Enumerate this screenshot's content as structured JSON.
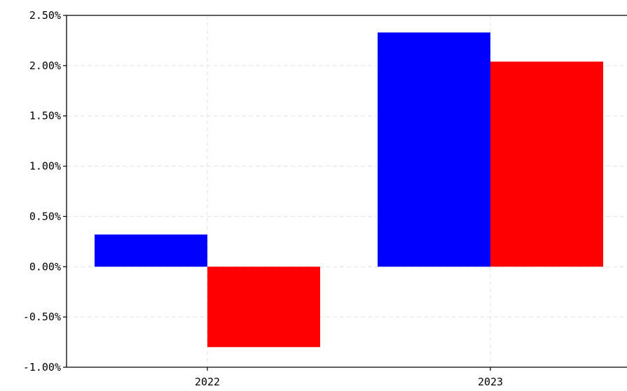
{
  "chart_data": {
    "type": "bar",
    "categories": [
      "2022",
      "2023"
    ],
    "series": [
      {
        "color": "#0000ff",
        "values": [
          0.32,
          2.33
        ]
      },
      {
        "color": "#ff0000",
        "values": [
          -0.8,
          2.04
        ]
      }
    ],
    "ylim": [
      -1.0,
      2.5
    ],
    "yticks": [
      2.5,
      2.0,
      1.5,
      1.0,
      0.5,
      0.0,
      -0.5,
      -1.0
    ],
    "ytick_labels": [
      "2.50%",
      "2.00%",
      "1.50%",
      "1.00%",
      "0.50%",
      "0.00%",
      "-0.50%",
      "-1.00%"
    ],
    "xtick_labels": [
      "2022",
      "2023"
    ],
    "grid": true,
    "title": "",
    "xlabel": "",
    "ylabel": ""
  }
}
